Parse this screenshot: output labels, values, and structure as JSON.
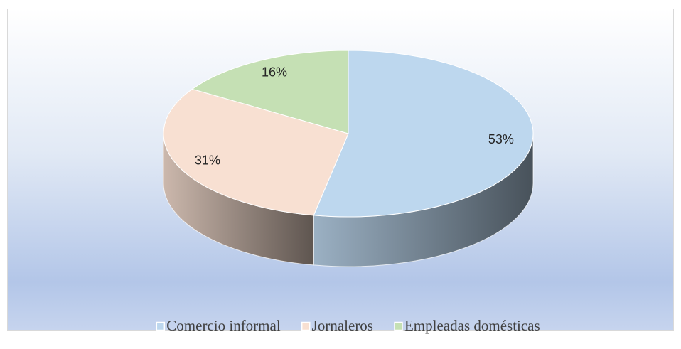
{
  "chart_data": {
    "type": "pie3d",
    "categories": [
      "Comercio informal",
      "Jornaleros",
      "Empleadas domésticas"
    ],
    "series": [
      {
        "values": [
          53,
          31,
          16
        ],
        "value_labels": [
          "53%",
          "31%",
          "16%"
        ],
        "colors": [
          "#bdd7ee",
          "#f8e0d2",
          "#c5e0b4"
        ]
      }
    ],
    "legend": "bottom"
  }
}
